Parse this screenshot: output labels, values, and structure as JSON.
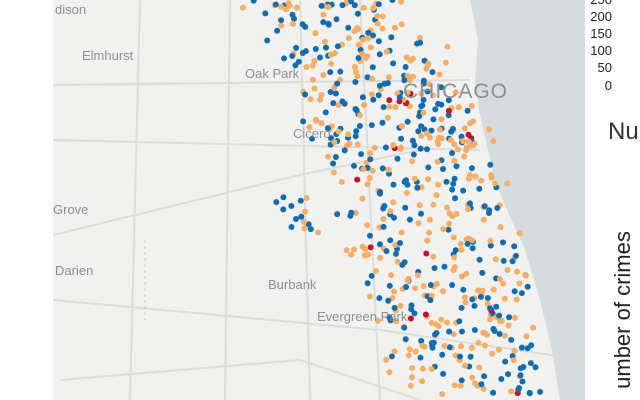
{
  "map": {
    "places": [
      "dison",
      "Elmhurst",
      "Oak Park",
      "Cicero",
      "CHICAGO",
      "Grove",
      "Darien",
      "Burbank",
      "Evergreen Park"
    ]
  },
  "colorbar": {
    "ticks": [
      250,
      200,
      150,
      100,
      50,
      0
    ],
    "title": "Nu",
    "axis_label": "umber of crimes"
  }
}
